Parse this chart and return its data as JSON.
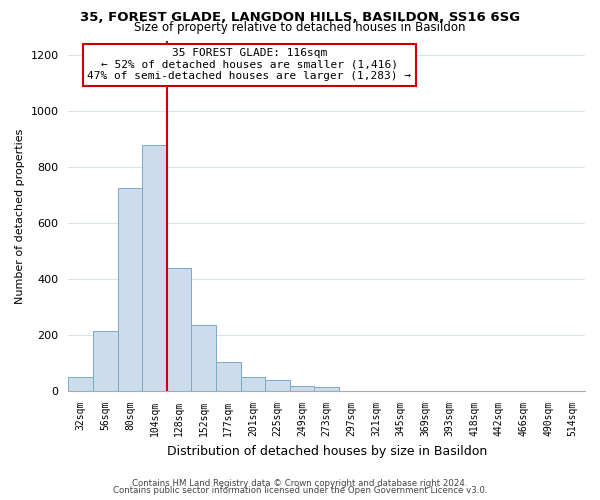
{
  "title": "35, FOREST GLADE, LANGDON HILLS, BASILDON, SS16 6SG",
  "subtitle": "Size of property relative to detached houses in Basildon",
  "xlabel": "Distribution of detached houses by size in Basildon",
  "ylabel": "Number of detached properties",
  "bar_labels": [
    "32sqm",
    "56sqm",
    "80sqm",
    "104sqm",
    "128sqm",
    "152sqm",
    "177sqm",
    "201sqm",
    "225sqm",
    "249sqm",
    "273sqm",
    "297sqm",
    "321sqm",
    "345sqm",
    "369sqm",
    "393sqm",
    "418sqm",
    "442sqm",
    "466sqm",
    "490sqm",
    "514sqm"
  ],
  "bar_values": [
    50,
    215,
    725,
    880,
    440,
    235,
    105,
    50,
    40,
    20,
    15,
    0,
    0,
    0,
    0,
    0,
    0,
    0,
    0,
    0,
    0
  ],
  "bar_color": "#ccdcec",
  "bar_edge_color": "#7aaac8",
  "vline_x_index": 4.0,
  "vline_color": "#cc0000",
  "annotation_title": "35 FOREST GLADE: 116sqm",
  "annotation_line1": "← 52% of detached houses are smaller (1,416)",
  "annotation_line2": "47% of semi-detached houses are larger (1,283) →",
  "annotation_box_color": "#ffffff",
  "annotation_box_edge": "#cc0000",
  "ylim": [
    0,
    1250
  ],
  "yticks": [
    0,
    200,
    400,
    600,
    800,
    1000,
    1200
  ],
  "footer1": "Contains HM Land Registry data © Crown copyright and database right 2024.",
  "footer2": "Contains public sector information licensed under the Open Government Licence v3.0.",
  "bg_color": "#ffffff",
  "grid_color": "#d8e4f0",
  "title_fontsize": 9.5,
  "subtitle_fontsize": 8.5
}
